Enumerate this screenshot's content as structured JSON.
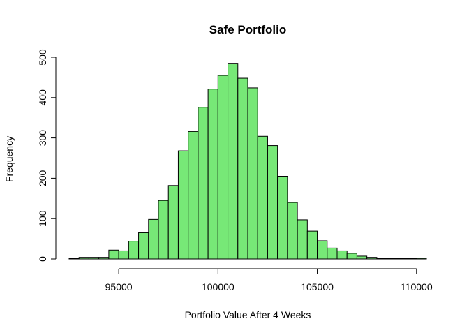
{
  "chart_data": {
    "type": "bar",
    "title": "Safe Portfolio",
    "xlabel": "Portfolio Value After 4 Weeks",
    "ylabel": "Frequency",
    "xlim": [
      92500,
      110500
    ],
    "ylim": [
      0,
      500
    ],
    "xticks": [
      95000,
      100000,
      105000,
      110000
    ],
    "yticks": [
      0,
      100,
      200,
      300,
      400,
      500
    ],
    "bin_width": 500,
    "bins_start": [
      92500,
      93000,
      93500,
      94000,
      94500,
      95000,
      95500,
      96000,
      96500,
      97000,
      97500,
      98000,
      98500,
      99000,
      99500,
      100000,
      100500,
      101000,
      101500,
      102000,
      102500,
      103000,
      103500,
      104000,
      104500,
      105000,
      105500,
      106000,
      106500,
      107000,
      107500,
      108000,
      108500,
      109000,
      109500,
      110000
    ],
    "values": [
      1,
      4,
      4,
      4,
      22,
      20,
      44,
      65,
      98,
      145,
      182,
      268,
      316,
      376,
      421,
      455,
      485,
      448,
      424,
      304,
      281,
      205,
      140,
      97,
      69,
      45,
      27,
      20,
      14,
      7,
      4,
      1,
      1,
      1,
      1,
      2
    ],
    "bar_color": "#77E877",
    "grid": false,
    "legend": "none"
  }
}
